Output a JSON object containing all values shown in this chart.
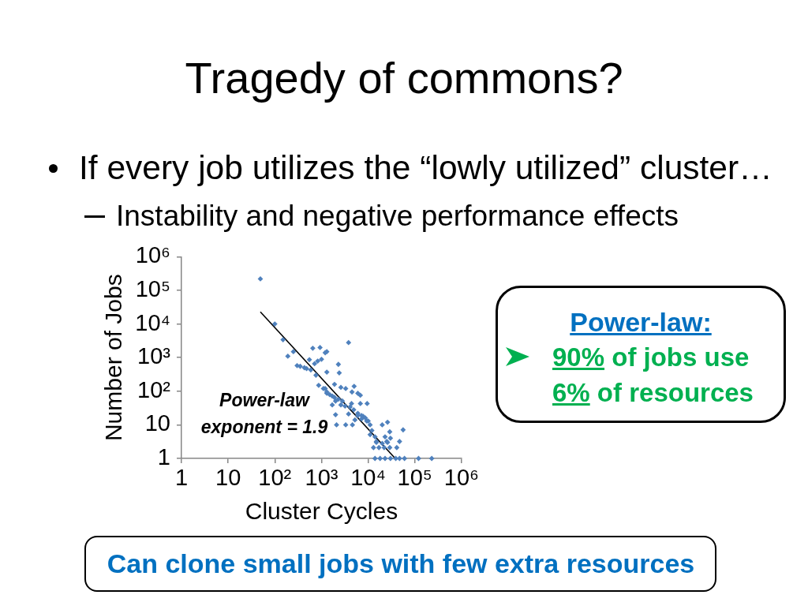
{
  "chart_data": {
    "type": "scatter",
    "title": "Tragedy of commons?",
    "subtitle": "If every job utilizes the “lowly utilized” cluster…",
    "xlabel": "Cluster Cycles",
    "ylabel": "Number of Jobs",
    "log": "xy",
    "xlim": [
      1,
      1000000
    ],
    "ylim": [
      1,
      1000000
    ],
    "xticks": [
      1,
      10,
      {
        "value": 100,
        "label": "10²"
      },
      {
        "value": 1000,
        "label": "10³"
      },
      {
        "value": 10000,
        "label": "10⁴"
      },
      {
        "value": 100000,
        "label": "10⁵"
      },
      {
        "value": 1000000,
        "label": "10⁶"
      }
    ],
    "yticks": [
      1,
      10,
      {
        "value": 100,
        "label": "10²"
      },
      {
        "value": 1000,
        "label": "10³"
      },
      {
        "value": 10000,
        "label": "10⁴"
      },
      {
        "value": 100000,
        "label": "10⁵"
      },
      {
        "value": 1000000,
        "label": "10⁶"
      }
    ],
    "marker": "diamond",
    "series": [
      {
        "type": "scatter",
        "color": "#4f81bd",
        "x": [
          49,
          100,
          150,
          190,
          250,
          650,
          930,
          300,
          350,
          430,
          480,
          590,
          710,
          830,
          1000,
          760,
          870,
          1100,
          1200,
          3800,
          550,
          1300,
          2300,
          2400,
          1300,
          1200,
          1900,
          2600,
          3300,
          5000,
          4500,
          6000,
          6800,
          1300,
          1700,
          2000,
          2600,
          3200,
          4400,
          6800,
          9500,
          2000,
          2100,
          3300,
          4600,
          3800,
          6000,
          7800,
          9300,
          11000,
          12000,
          11000,
          14000,
          20000,
          26000,
          29000,
          56000,
          23000,
          15000,
          13000,
          17000,
          22000,
          29000,
          41000,
          47000,
          25000,
          14000,
          18000,
          23000,
          30000,
          39000,
          47000,
          60000,
          120000,
          230000,
          1300,
          1500,
          1900,
          2300,
          2800,
          4100,
          4900,
          6000,
          7200,
          8700,
          10000,
          1700,
          5200,
          7200,
          15000,
          20000,
          26000,
          30000
        ],
        "values": [
          220000,
          10000,
          3400,
          1100,
          1500,
          1900,
          2000,
          580,
          550,
          500,
          470,
          430,
          660,
          790,
          890,
          300,
          150,
          120,
          1400,
          2800,
          870,
          1500,
          630,
          350,
          370,
          120,
          160,
          130,
          120,
          140,
          95,
          87,
          76,
          87,
          72,
          51,
          39,
          36,
          43,
          43,
          43,
          20,
          10,
          10,
          10,
          21,
          19,
          18,
          13,
          10,
          6.8,
          5.1,
          4.4,
          10,
          12,
          6.2,
          7.1,
          4.4,
          3.2,
          2.1,
          2.1,
          2.1,
          2.1,
          2.1,
          3.2,
          3.2,
          1,
          1,
          1,
          1,
          1,
          1,
          1,
          1,
          1,
          95,
          79,
          65,
          58,
          51,
          34,
          28,
          22,
          19,
          16,
          13,
          39,
          14,
          15,
          3,
          2.8,
          3,
          4
        ]
      },
      {
        "type": "line",
        "color": "#000000",
        "marker": "none",
        "x": [
          49,
          38000
        ],
        "values": [
          23000,
          1
        ]
      }
    ],
    "annotations": [
      "Instability and negative performance effects",
      "Power-law exponent = 1.9",
      "Power-law:",
      "90% of jobs use 6% of resources",
      "Can clone small jobs with few extra resources"
    ]
  }
}
